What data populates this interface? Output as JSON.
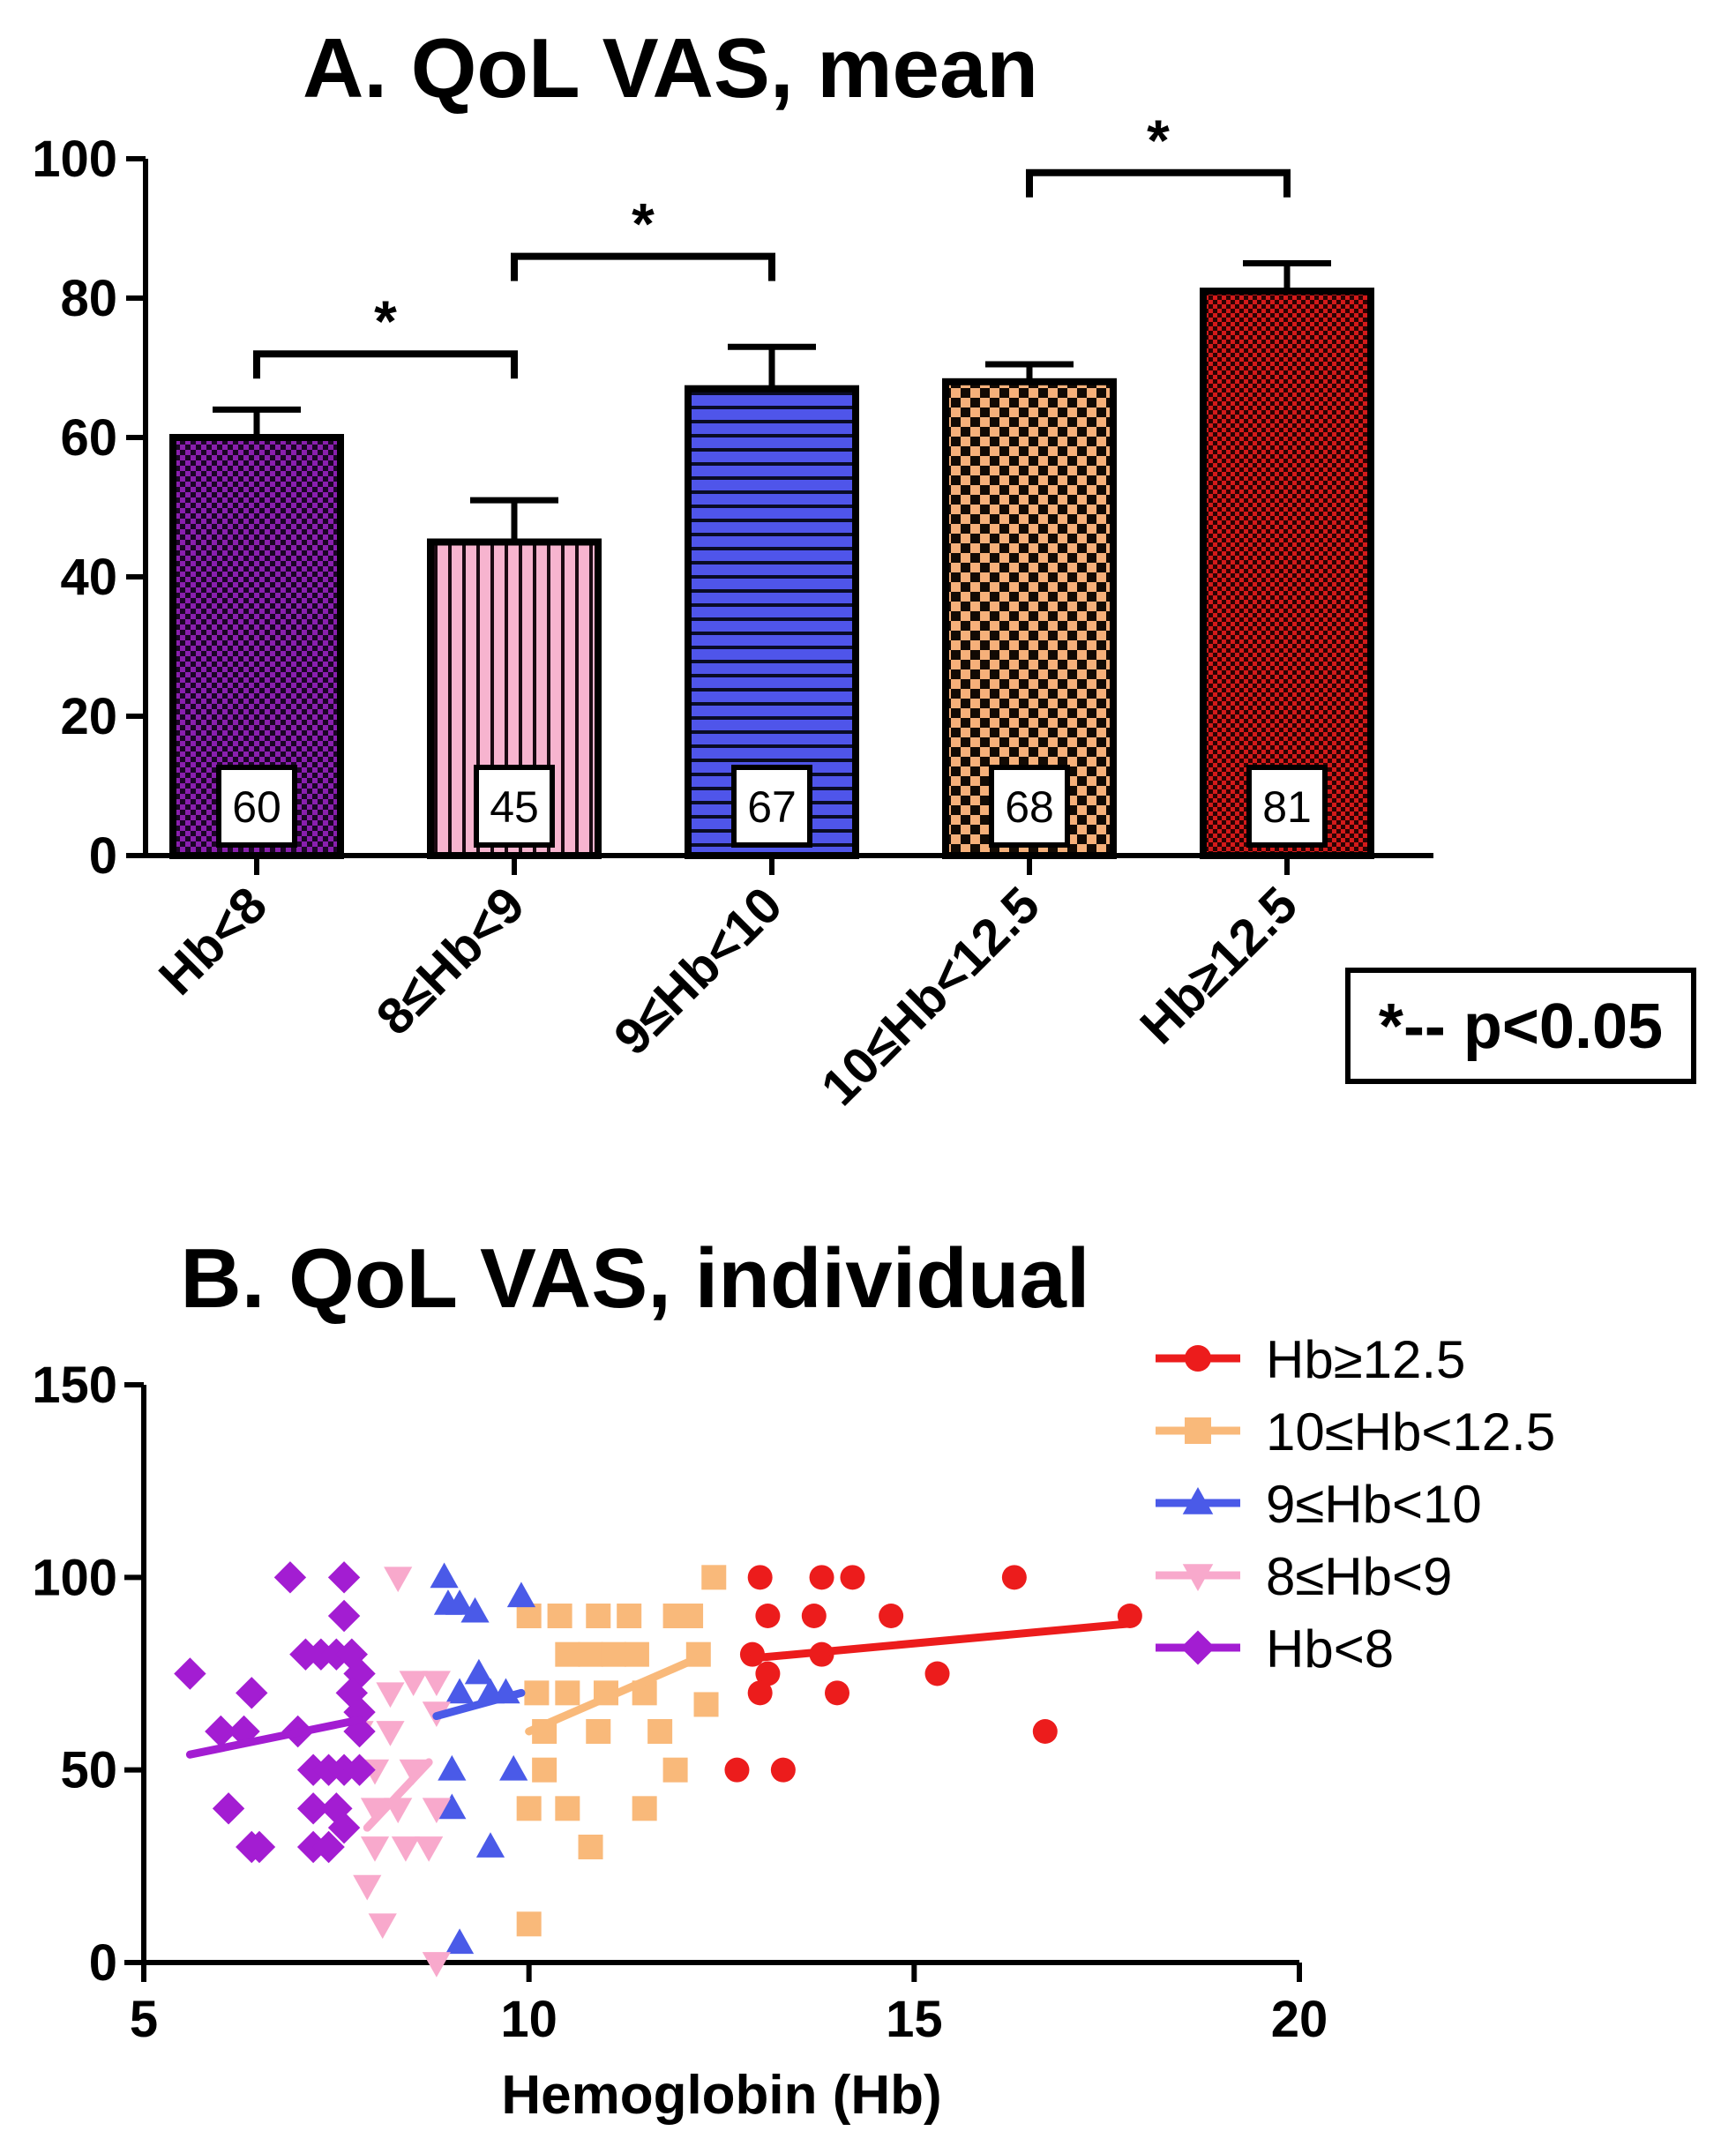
{
  "chart_data": [
    {
      "type": "bar",
      "title": "A. QoL VAS, mean",
      "categories": [
        "Hb<8",
        "8≤Hb<9",
        "9≤Hb<10",
        "10≤Hb<12.5",
        "Hb≥12.5"
      ],
      "values": [
        60,
        45,
        67,
        68,
        81
      ],
      "value_labels": [
        "60",
        "45",
        "67",
        "68",
        "81"
      ],
      "error_upper": [
        64,
        51,
        73,
        70.5,
        85
      ],
      "colors": [
        "#8a1fae",
        "#f7b4cf",
        "#4f55ea",
        "#f6b07a",
        "#d41a1a"
      ],
      "patterns": [
        "checker",
        "vertical",
        "horizontal",
        "checker-large",
        "checker"
      ],
      "ylim": [
        0,
        100
      ],
      "yticks": [
        "0",
        "20",
        "40",
        "60",
        "80",
        "100"
      ],
      "xlabel": "",
      "ylabel": "",
      "significance": [
        {
          "from": 0,
          "to": 1,
          "label": "*",
          "level": 72
        },
        {
          "from": 1,
          "to": 2,
          "label": "*",
          "level": 86
        },
        {
          "from": 3,
          "to": 4,
          "label": "*",
          "level": 98
        }
      ],
      "note": "*-- p<0.05"
    },
    {
      "type": "scatter",
      "title": "B. QoL VAS, individual",
      "xlabel": "Hemoglobin (Hb)",
      "ylabel": "",
      "xlim": [
        5,
        20
      ],
      "ylim": [
        0,
        150
      ],
      "xticks": [
        "5",
        "10",
        "15",
        "20"
      ],
      "yticks": [
        "0",
        "50",
        "100",
        "150"
      ],
      "legend_position": "top-right",
      "series": [
        {
          "name": "Hb≥12.5",
          "color": "#ec1c1c",
          "marker": "circle",
          "trend": [
            [
              12.9,
              79
            ],
            [
              17.8,
              88
            ]
          ],
          "points": [
            [
              13.0,
              100
            ],
            [
              13.8,
              100
            ],
            [
              14.2,
              100
            ],
            [
              16.3,
              100
            ],
            [
              13.1,
              90
            ],
            [
              13.7,
              90
            ],
            [
              14.7,
              90
            ],
            [
              17.8,
              90
            ],
            [
              12.9,
              80
            ],
            [
              13.1,
              75
            ],
            [
              13.8,
              80
            ],
            [
              15.3,
              75
            ],
            [
              13.0,
              70
            ],
            [
              14.0,
              70
            ],
            [
              16.7,
              60
            ],
            [
              12.7,
              50
            ],
            [
              13.3,
              50
            ]
          ]
        },
        {
          "name": "10≤Hb<12.5",
          "color": "#f9b97a",
          "marker": "square",
          "trend": [
            [
              10.0,
              60
            ],
            [
              12.3,
              80
            ]
          ],
          "points": [
            [
              12.4,
              100
            ],
            [
              10.0,
              90
            ],
            [
              10.4,
              90
            ],
            [
              10.9,
              90
            ],
            [
              11.3,
              90
            ],
            [
              11.9,
              90
            ],
            [
              12.1,
              90
            ],
            [
              10.5,
              80
            ],
            [
              10.8,
              80
            ],
            [
              11.1,
              80
            ],
            [
              11.4,
              80
            ],
            [
              12.2,
              80
            ],
            [
              10.1,
              70
            ],
            [
              10.5,
              70
            ],
            [
              11.0,
              70
            ],
            [
              11.5,
              70
            ],
            [
              12.3,
              67
            ],
            [
              10.2,
              60
            ],
            [
              10.9,
              60
            ],
            [
              11.7,
              60
            ],
            [
              10.2,
              50
            ],
            [
              11.9,
              50
            ],
            [
              10.0,
              40
            ],
            [
              10.5,
              40
            ],
            [
              11.5,
              40
            ],
            [
              10.8,
              30
            ],
            [
              10.0,
              10
            ]
          ]
        },
        {
          "name": "9≤Hb<10",
          "color": "#4a5ae8",
          "marker": "triangle-up",
          "trend": [
            [
              8.8,
              64
            ],
            [
              9.9,
              70
            ]
          ],
          "points": [
            [
              8.9,
              100
            ],
            [
              9.9,
              95
            ],
            [
              8.95,
              93
            ],
            [
              9.1,
              93
            ],
            [
              9.3,
              91
            ],
            [
              9.35,
              75
            ],
            [
              9.1,
              70
            ],
            [
              9.5,
              70
            ],
            [
              9.7,
              70
            ],
            [
              9.0,
              50
            ],
            [
              9.8,
              50
            ],
            [
              9.0,
              40
            ],
            [
              9.5,
              30
            ],
            [
              9.1,
              5
            ]
          ]
        },
        {
          "name": "8≤Hb<9",
          "color": "#f8a9cc",
          "marker": "triangle-down",
          "trend": [
            [
              7.9,
              35
            ],
            [
              8.7,
              52
            ]
          ],
          "points": [
            [
              8.3,
              100
            ],
            [
              8.5,
              73
            ],
            [
              8.8,
              73
            ],
            [
              8.2,
              70
            ],
            [
              7.8,
              60
            ],
            [
              8.2,
              60
            ],
            [
              8.8,
              65
            ],
            [
              8.0,
              50
            ],
            [
              8.5,
              50
            ],
            [
              8.0,
              40
            ],
            [
              8.3,
              40
            ],
            [
              8.8,
              40
            ],
            [
              8.0,
              30
            ],
            [
              8.4,
              30
            ],
            [
              8.7,
              30
            ],
            [
              7.9,
              20
            ],
            [
              8.1,
              10
            ],
            [
              8.8,
              0
            ]
          ]
        },
        {
          "name": "Hb<8",
          "color": "#a31dd2",
          "marker": "diamond",
          "trend": [
            [
              5.6,
              54
            ],
            [
              7.8,
              63
            ]
          ],
          "points": [
            [
              6.9,
              100
            ],
            [
              7.6,
              100
            ],
            [
              7.6,
              90
            ],
            [
              7.3,
              80
            ],
            [
              7.5,
              80
            ],
            [
              7.1,
              80
            ],
            [
              7.7,
              80
            ],
            [
              5.6,
              75
            ],
            [
              7.8,
              75
            ],
            [
              6.4,
              70
            ],
            [
              7.7,
              70
            ],
            [
              7.8,
              65
            ],
            [
              6.0,
              60
            ],
            [
              7.8,
              60
            ],
            [
              6.3,
              60
            ],
            [
              7.0,
              60
            ],
            [
              7.2,
              50
            ],
            [
              7.4,
              50
            ],
            [
              7.6,
              50
            ],
            [
              7.8,
              50
            ],
            [
              6.1,
              40
            ],
            [
              7.2,
              40
            ],
            [
              7.5,
              40
            ],
            [
              7.6,
              35
            ],
            [
              6.4,
              30
            ],
            [
              6.5,
              30
            ],
            [
              7.2,
              30
            ],
            [
              7.4,
              30
            ]
          ]
        }
      ]
    }
  ]
}
